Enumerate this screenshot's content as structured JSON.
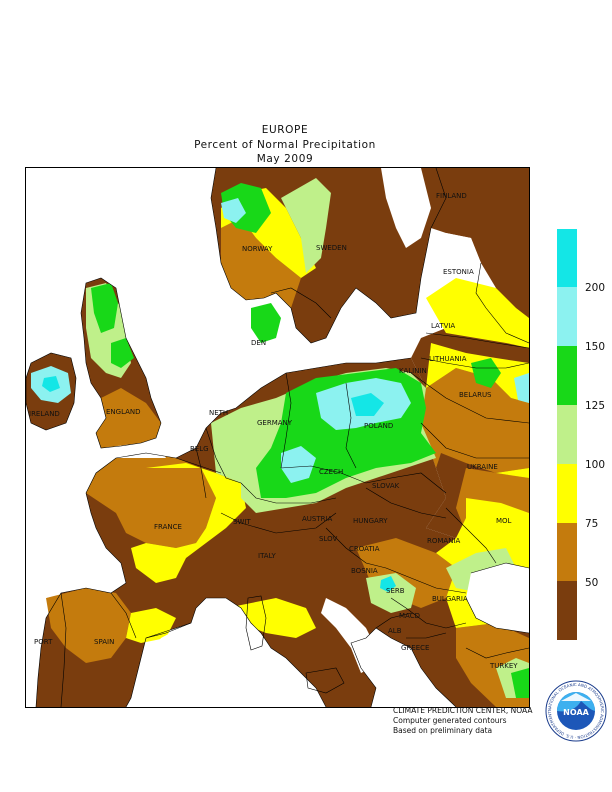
{
  "header": {
    "line1": "EUROPE",
    "line2": "Percent of Normal Precipitation",
    "line3": "May 2009"
  },
  "colors": {
    "lt50": "#7a3d0e",
    "c50_75": "#c47b0d",
    "c75_100": "#ffff00",
    "c100_125": "#bff08a",
    "c125_150": "#18d818",
    "c150_200": "#8cf2f0",
    "gt200": "#14e6e6",
    "sea": "#ffffff",
    "border": "#000000"
  },
  "legend": {
    "ticks": [
      "200",
      "150",
      "125",
      "100",
      "75",
      "50"
    ]
  },
  "countries": {
    "norway": "NORWAY",
    "sweden": "SWEDEN",
    "finland": "FINLAND",
    "estonia": "ESTONIA",
    "latvia": "LATVIA",
    "lithuania": "LITHUANIA",
    "kalinin": "KALININ",
    "belarus": "BELARUS",
    "ukraine": "UKRAINE",
    "moldova": "MOL",
    "romania": "ROMANIA",
    "bulgaria": "BULGARIA",
    "turkey": "TURKEY",
    "greece": "GREECE",
    "serbia": "SERB",
    "macedonia": "MACD",
    "albania": "ALB",
    "bosnia": "BOSNIA",
    "croatia": "CROATIA",
    "slovenia": "SLOV",
    "hungary": "HUNGARY",
    "slovakia": "SLOVAK",
    "czech": "CZECH",
    "poland": "POLAND",
    "germany": "GERMANY",
    "denmark": "DEN",
    "netherlands": "NETH",
    "belgium": "BELG",
    "france": "FRANCE",
    "switzerland": "SWIT",
    "austria": "AUSTRIA",
    "italy": "ITALY",
    "spain": "SPAIN",
    "portugal": "PORT",
    "england": "ENGLAND",
    "ireland": "IRELAND"
  },
  "credits": {
    "line1": "CLIMATE PREDICTION CENTER, NOAA",
    "line2": "Computer generated contours",
    "line3": "Based on preliminary data"
  },
  "logo": {
    "text": "NOAA",
    "ring_text": "NATIONAL OCEANIC AND ATMOSPHERIC ADMINISTRATION · U.S. DEPARTMENT OF COMMERCE"
  }
}
